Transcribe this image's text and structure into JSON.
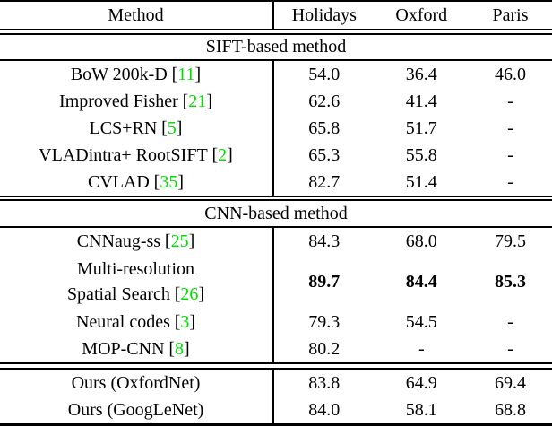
{
  "table": {
    "ref_open": "[",
    "ref_close": "]",
    "citation_color": "#00e000",
    "columns": {
      "method": "Method",
      "holidays": "Holidays",
      "oxford": "Oxford",
      "paris": "Paris"
    },
    "sections": [
      {
        "header": "SIFT-based method",
        "rows": [
          {
            "method": "BoW 200k-D",
            "ref": "11",
            "values": [
              "54.0",
              "36.4",
              "46.0"
            ]
          },
          {
            "method": "Improved Fisher",
            "ref": "21",
            "values": [
              "62.6",
              "41.4",
              "-"
            ]
          },
          {
            "method": "LCS+RN",
            "ref": "5",
            "values": [
              "65.8",
              "51.7",
              "-"
            ]
          },
          {
            "method": "VLADintra+ RootSIFT",
            "ref": "2",
            "values": [
              "65.3",
              "55.8",
              "-"
            ]
          },
          {
            "method": "CVLAD",
            "ref": "35",
            "values": [
              "82.7",
              "51.4",
              "-"
            ]
          }
        ]
      },
      {
        "header": "CNN-based method",
        "rows": [
          {
            "method": "CNNaug-ss",
            "ref": "25",
            "values": [
              "84.3",
              "68.0",
              "79.5"
            ]
          },
          {
            "method_line1": "Multi-resolution",
            "method_line2": "Spatial Search",
            "ref": "26",
            "values": [
              "89.7",
              "84.4",
              "85.3"
            ],
            "bold_values": true
          },
          {
            "method": "Neural codes",
            "ref": "3",
            "values": [
              "79.3",
              "54.5",
              "-"
            ]
          },
          {
            "method": "MOP-CNN",
            "ref": "8",
            "values": [
              "80.2",
              "-",
              "-"
            ]
          }
        ]
      },
      {
        "header": null,
        "rows": [
          {
            "method": "Ours (OxfordNet)",
            "values": [
              "83.8",
              "64.9",
              "69.4"
            ]
          },
          {
            "method": "Ours (GoogLeNet)",
            "values": [
              "84.0",
              "58.1",
              "68.8"
            ]
          }
        ]
      }
    ]
  }
}
